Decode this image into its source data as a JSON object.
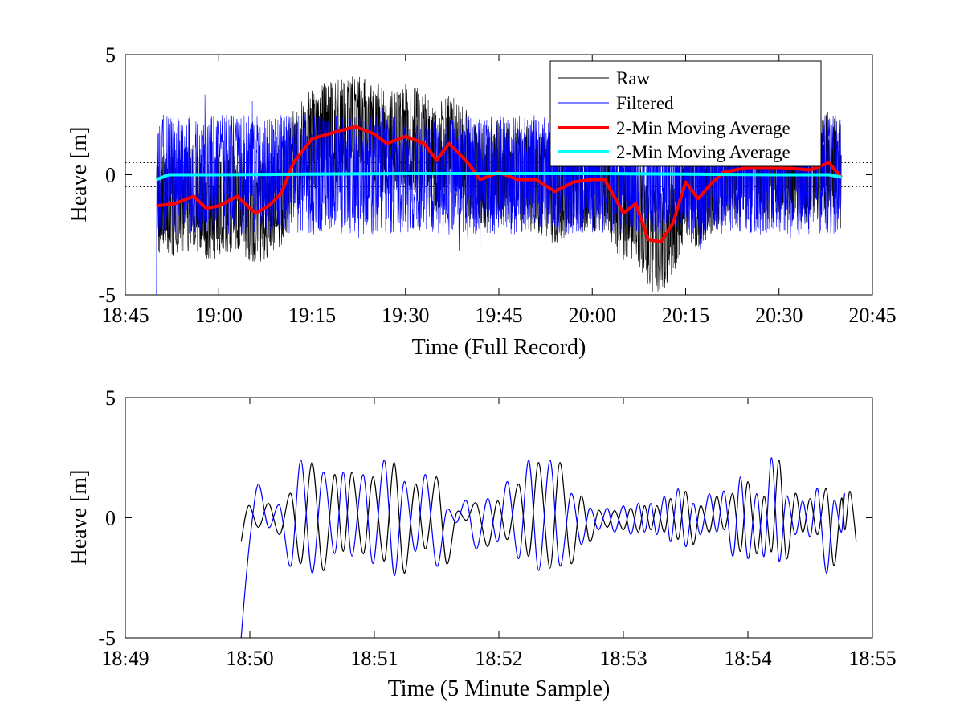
{
  "chart_data": [
    {
      "id": "full-record",
      "type": "line",
      "xlabel": "Time (Full Record)",
      "ylabel": "Heave [m]",
      "xlim": [
        "18:45",
        "20:45"
      ],
      "ylim": [
        -5,
        5
      ],
      "xticks": [
        "18:45",
        "19:00",
        "19:15",
        "19:30",
        "19:45",
        "20:00",
        "20:15",
        "20:30",
        "20:45"
      ],
      "yticks": [
        "-5",
        "0",
        "5"
      ],
      "grid": false,
      "reference_lines": {
        "y": [
          0.5,
          -0.5
        ],
        "style": "dotted",
        "color": "#000000"
      },
      "legend": {
        "placement": "top-right",
        "entries": [
          {
            "label": "Raw",
            "color": "#000000"
          },
          {
            "label": "Filtered",
            "color": "#0000ff"
          },
          {
            "label": "2-Min Moving Average",
            "color": "#ff0000"
          },
          {
            "label": "2-Min Moving Average",
            "color": "#00ffff"
          }
        ]
      },
      "series": [
        {
          "name": "Raw",
          "color": "#000000",
          "style": "noisy",
          "x_range": [
            "18:50",
            "20:40"
          ],
          "envelope_amplitude": 2.2
        },
        {
          "name": "Filtered",
          "color": "#0000ff",
          "style": "noisy",
          "x_range": [
            "18:50",
            "20:40"
          ],
          "envelope_amplitude": 2.5
        },
        {
          "name": "2-Min Moving Average",
          "color": "#ff0000",
          "x": [
            "18:50",
            "18:53",
            "18:56",
            "18:58",
            "19:00",
            "19:03",
            "19:05",
            "19:06",
            "19:08",
            "19:10",
            "19:12",
            "19:15",
            "19:19",
            "19:22",
            "19:25",
            "19:27",
            "19:30",
            "19:33",
            "19:35",
            "19:37",
            "19:40",
            "19:42",
            "19:45",
            "19:48",
            "19:51",
            "19:54",
            "19:57",
            "20:00",
            "20:02",
            "20:05",
            "20:07",
            "20:09",
            "20:11",
            "20:13",
            "20:15",
            "20:17",
            "20:19",
            "20:21",
            "20:25",
            "20:30",
            "20:35",
            "20:38",
            "20:40"
          ],
          "y": [
            -1.3,
            -1.2,
            -0.9,
            -1.4,
            -1.3,
            -0.9,
            -1.4,
            -1.6,
            -1.3,
            -0.8,
            0.5,
            1.5,
            1.8,
            2.0,
            1.7,
            1.3,
            1.6,
            1.3,
            0.6,
            1.3,
            0.5,
            -0.2,
            0.1,
            -0.2,
            -0.2,
            -0.7,
            -0.3,
            -0.2,
            -0.2,
            -1.6,
            -1.2,
            -2.7,
            -2.8,
            -2.0,
            -0.3,
            -1.0,
            -0.4,
            0.1,
            0.3,
            0.3,
            0.2,
            0.5,
            -0.1
          ]
        },
        {
          "name": "2-Min Moving Average",
          "color": "#00ffff",
          "x": [
            "18:50",
            "18:51",
            "18:52",
            "19:00",
            "19:30",
            "20:00",
            "20:30",
            "20:38",
            "20:40"
          ],
          "y": [
            -0.2,
            -0.1,
            0.0,
            0.0,
            0.05,
            0.05,
            0.0,
            0.0,
            -0.1
          ]
        }
      ]
    },
    {
      "id": "five-minute-sample",
      "type": "line",
      "xlabel": "Time (5 Minute Sample)",
      "ylabel": "Heave [m]",
      "xlim": [
        "18:49",
        "18:55"
      ],
      "ylim": [
        -5,
        5
      ],
      "xticks": [
        "18:49",
        "18:50",
        "18:51",
        "18:52",
        "18:53",
        "18:54",
        "18:55"
      ],
      "yticks": [
        "-5",
        "0",
        "5"
      ],
      "grid": false,
      "series": [
        {
          "name": "Raw",
          "color": "#000000",
          "x_minutes_after_1849": [
            0.93,
            0.99,
            1.07,
            1.15,
            1.24,
            1.33,
            1.41,
            1.5,
            1.59,
            1.68,
            1.75,
            1.82,
            1.91,
            1.99,
            2.08,
            2.16,
            2.24,
            2.33,
            2.41,
            2.5,
            2.58,
            2.66,
            2.74,
            2.82,
            2.91,
            2.99,
            3.07,
            3.16,
            3.24,
            3.32,
            3.41,
            3.49,
            3.58,
            3.66,
            3.73,
            3.8,
            3.87,
            3.93,
            4.0,
            4.06,
            4.12,
            4.17,
            4.22,
            4.27,
            4.33,
            4.38,
            4.44,
            4.5,
            4.56,
            4.62,
            4.69,
            4.75,
            4.81,
            4.88,
            4.94,
            5.0,
            5.07,
            5.13,
            5.19,
            5.25,
            5.31,
            5.38,
            5.44,
            5.5,
            5.56,
            5.63,
            5.69,
            5.75,
            5.78,
            5.82,
            5.87
          ],
          "y": [
            -1.0,
            0.5,
            -0.4,
            0.6,
            -0.7,
            1.0,
            -1.9,
            2.3,
            -2.2,
            1.8,
            -1.4,
            1.9,
            -1.5,
            1.7,
            -1.8,
            2.3,
            -2.3,
            1.4,
            -1.3,
            1.7,
            -1.9,
            0.2,
            -0.1,
            0.6,
            -1.2,
            0.7,
            -0.9,
            1.4,
            -1.6,
            2.3,
            -2.1,
            2.3,
            -1.9,
            0.9,
            -1.0,
            0.3,
            -0.4,
            0.3,
            -0.5,
            0.4,
            -0.6,
            0.5,
            -0.5,
            0.5,
            -0.6,
            0.8,
            -0.9,
            1.1,
            -1.1,
            0.5,
            -0.6,
            0.9,
            -0.5,
            1.0,
            -1.4,
            1.5,
            -1.5,
            0.9,
            -1.4,
            2.4,
            -1.7,
            1.0,
            -0.6,
            0.8,
            -0.7,
            1.2,
            -2.0,
            0.8,
            -0.5,
            1.1,
            -1.0
          ]
        },
        {
          "name": "Filtered",
          "color": "#0000ff",
          "x_minutes_after_1849": [
            0.93,
            0.97,
            1.01,
            1.07,
            1.15,
            1.24,
            1.33,
            1.41,
            1.5,
            1.59,
            1.68,
            1.75,
            1.82,
            1.91,
            1.99,
            2.08,
            2.16,
            2.24,
            2.33,
            2.41,
            2.5,
            2.58,
            2.66,
            2.74,
            2.82,
            2.91,
            2.99,
            3.07,
            3.16,
            3.24,
            3.32,
            3.41,
            3.49,
            3.58,
            3.66,
            3.73,
            3.8,
            3.87,
            3.93,
            4.0,
            4.06,
            4.12,
            4.17,
            4.22,
            4.27,
            4.33,
            4.38,
            4.44,
            4.5,
            4.56,
            4.62,
            4.69,
            4.75,
            4.81,
            4.88,
            4.94,
            5.0,
            5.07,
            5.13,
            5.19,
            5.25,
            5.31,
            5.38,
            5.44,
            5.5,
            5.56,
            5.63,
            5.69,
            5.75,
            5.78,
            5.82,
            5.87
          ],
          "y": [
            -5.0,
            -2.5,
            -0.5,
            1.4,
            -0.4,
            0.5,
            -2.0,
            2.4,
            -2.3,
            1.9,
            -1.5,
            1.9,
            -1.6,
            1.8,
            -1.9,
            2.4,
            -2.4,
            1.5,
            -1.4,
            1.8,
            -2.0,
            0.3,
            -0.2,
            0.7,
            -1.3,
            0.8,
            -1.0,
            1.5,
            -1.7,
            2.4,
            -2.2,
            2.4,
            -2.0,
            1.0,
            -1.1,
            0.4,
            -0.5,
            0.4,
            -0.6,
            0.5,
            -0.7,
            0.6,
            -0.6,
            0.6,
            -0.7,
            0.9,
            -1.0,
            1.2,
            -1.2,
            0.6,
            -0.7,
            1.0,
            -0.6,
            1.1,
            -1.6,
            1.7,
            -1.7,
            1.0,
            -1.6,
            2.5,
            -1.8,
            0.9,
            -0.7,
            0.7,
            -0.8,
            1.2,
            -2.3,
            0.7,
            -0.6,
            1.0,
            -1.2
          ]
        }
      ]
    }
  ]
}
